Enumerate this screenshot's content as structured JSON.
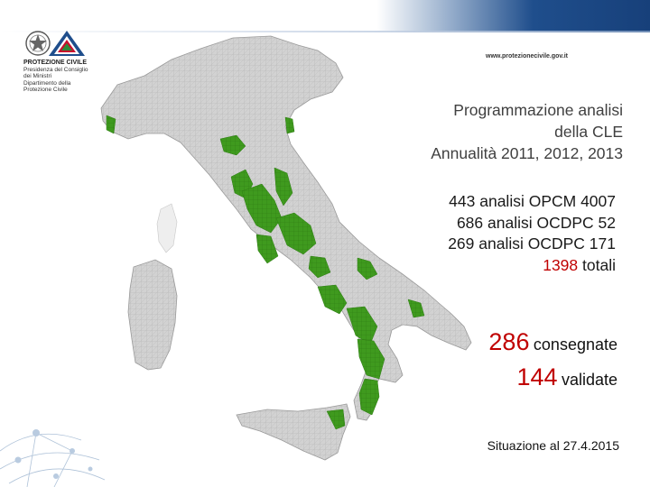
{
  "header": {
    "url": "www.protezionecivile.gov.it",
    "logo_org": "PROTEZIONE CIVILE",
    "logo_line1": "Presidenza del Consiglio dei Ministri",
    "logo_line2": "Dipartimento della Protezione Civile"
  },
  "title": {
    "line1": "Programmazione analisi",
    "line2": "della CLE",
    "line3": "Annualità 2011, 2012, 2013"
  },
  "stats": {
    "line1": "443 analisi OPCM 4007",
    "line2": "686 analisi OCDPC 52",
    "line3": "269 analisi OCDPC 171",
    "total_number": "1398",
    "total_word": "totali"
  },
  "deliveries": {
    "delivered_number": "286",
    "delivered_label": "consegnate",
    "validated_number": "144",
    "validated_label": "validate"
  },
  "status": {
    "text": "Situazione al 27.4.2015"
  },
  "colors": {
    "highlight_municipalities": "#3f9a1e",
    "base_municipalities": "#c8c8c8",
    "accent_red": "#c00000",
    "header_blue": "#1f4e8c"
  }
}
